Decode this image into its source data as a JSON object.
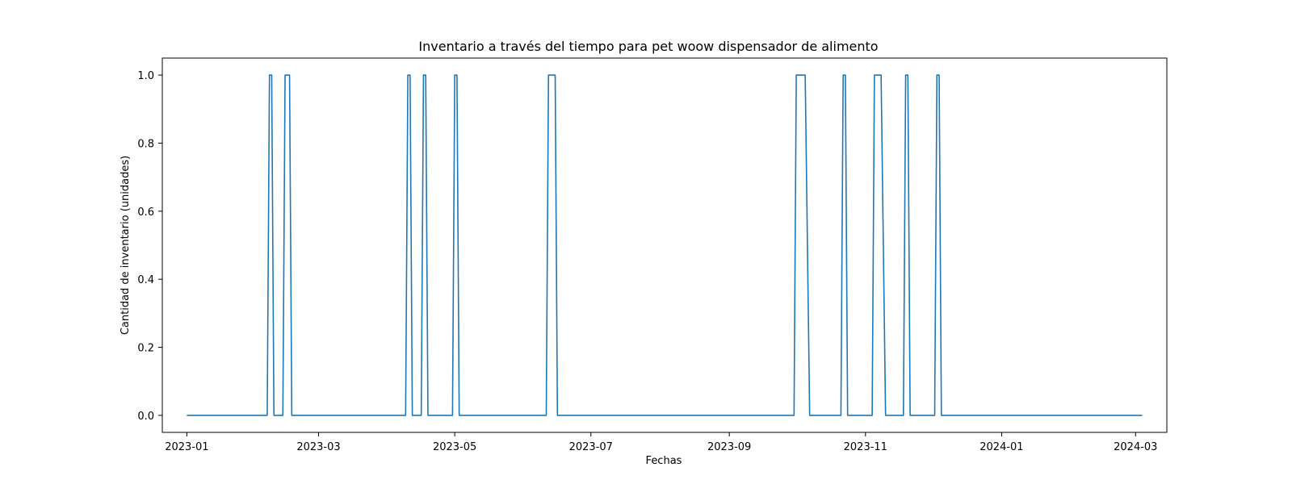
{
  "chart_data": {
    "type": "line",
    "title": "Inventario a través del tiempo para pet woow dispensador de alimento",
    "xlabel": "Fechas",
    "ylabel": "Cantidad de inventario (unidades)",
    "x_type": "date",
    "xlim": [
      "2022-12-21",
      "2024-03-15"
    ],
    "ylim": [
      -0.05,
      1.05
    ],
    "x_ticks": [
      "2023-01",
      "2023-03",
      "2023-05",
      "2023-07",
      "2023-09",
      "2023-11",
      "2024-01",
      "2024-03"
    ],
    "y_ticks": [
      "0.0",
      "0.2",
      "0.4",
      "0.6",
      "0.8",
      "1.0"
    ],
    "grid": false,
    "line_color": "#1f77b4",
    "series": [
      {
        "points": [
          [
            "2023-01-01",
            0
          ],
          [
            "2023-02-06",
            0
          ],
          [
            "2023-02-07",
            1
          ],
          [
            "2023-02-08",
            1
          ],
          [
            "2023-02-09",
            0
          ],
          [
            "2023-02-13",
            0
          ],
          [
            "2023-02-14",
            1
          ],
          [
            "2023-02-16",
            1
          ],
          [
            "2023-02-17",
            0
          ],
          [
            "2023-04-09",
            0
          ],
          [
            "2023-04-10",
            1
          ],
          [
            "2023-04-11",
            1
          ],
          [
            "2023-04-12",
            0
          ],
          [
            "2023-04-16",
            0
          ],
          [
            "2023-04-17",
            1
          ],
          [
            "2023-04-18",
            1
          ],
          [
            "2023-04-19",
            0
          ],
          [
            "2023-04-30",
            0
          ],
          [
            "2023-05-01",
            1
          ],
          [
            "2023-05-02",
            1
          ],
          [
            "2023-05-03",
            0
          ],
          [
            "2023-06-11",
            0
          ],
          [
            "2023-06-12",
            1
          ],
          [
            "2023-06-15",
            1
          ],
          [
            "2023-06-16",
            0
          ],
          [
            "2023-09-30",
            0
          ],
          [
            "2023-10-01",
            1
          ],
          [
            "2023-10-05",
            1
          ],
          [
            "2023-10-07",
            0
          ],
          [
            "2023-10-21",
            0
          ],
          [
            "2023-10-22",
            1
          ],
          [
            "2023-10-23",
            1
          ],
          [
            "2023-10-24",
            0
          ],
          [
            "2023-11-04",
            0
          ],
          [
            "2023-11-05",
            1
          ],
          [
            "2023-11-08",
            1
          ],
          [
            "2023-11-10",
            0
          ],
          [
            "2023-11-18",
            0
          ],
          [
            "2023-11-19",
            1
          ],
          [
            "2023-11-20",
            1
          ],
          [
            "2023-11-21",
            0
          ],
          [
            "2023-12-02",
            0
          ],
          [
            "2023-12-03",
            1
          ],
          [
            "2023-12-04",
            1
          ],
          [
            "2023-12-05",
            0
          ],
          [
            "2024-03-04",
            0
          ]
        ]
      }
    ]
  }
}
